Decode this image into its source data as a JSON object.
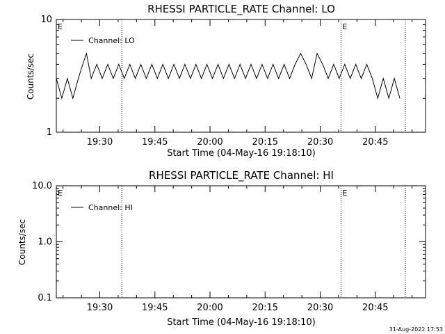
{
  "chart_data": [
    {
      "type": "line",
      "title": "RHESSI PARTICLE_RATE Channel: LO",
      "xlabel": "Start Time (04-May-16 19:18:10)",
      "ylabel": "Counts/sec",
      "y_scale": "log",
      "ylim": [
        1,
        10
      ],
      "ytick_labels": [
        "1",
        "10"
      ],
      "xlim": [
        "19:18:10",
        "20:58:40"
      ],
      "xtick_labels": [
        "19:30",
        "19:45",
        "20:00",
        "20:15",
        "20:30",
        "20:45"
      ],
      "grid": false,
      "legend_position": "top-left",
      "series": [
        {
          "name": "Channel: LO",
          "x_minutes_after_19_18_10": [
            0,
            1.5,
            3,
            4.5,
            6,
            7.2,
            8.2,
            9.5,
            11,
            12.5,
            14,
            15.5,
            17,
            18.5,
            20,
            21.5,
            23,
            24.5,
            26,
            27.5,
            29,
            30.5,
            32,
            33.5,
            35,
            36.5,
            38,
            39.5,
            41,
            42.5,
            44,
            45.5,
            47,
            48.5,
            50,
            51.5,
            53,
            54.5,
            56,
            57.5,
            59,
            60.5,
            62,
            63.5,
            65,
            66.5,
            68,
            69.5,
            71,
            72.5,
            74,
            75.5,
            77,
            78.5,
            80,
            81.5,
            83,
            84.5,
            86,
            87.5,
            89,
            90.5,
            92,
            93.5
          ],
          "y": [
            3,
            2,
            3,
            2,
            3,
            4,
            5,
            3,
            4,
            3,
            4,
            3,
            4,
            3,
            4,
            3,
            4,
            3,
            4,
            3,
            4,
            3,
            4,
            3,
            4,
            3,
            4,
            3,
            4,
            3,
            4,
            3,
            4,
            3,
            4,
            3,
            4,
            3,
            4,
            3,
            4,
            3,
            4,
            3,
            4,
            5,
            4,
            3,
            5,
            4,
            3,
            4,
            3,
            4,
            3,
            4,
            3,
            4,
            3,
            2,
            3,
            2,
            3,
            2
          ]
        }
      ],
      "annotations": [
        {
          "text": "E",
          "x": "19:18:10"
        },
        {
          "text": "E",
          "x": "20:35:40"
        }
      ],
      "vertical_dotted_lines_at": [
        "19:36:00",
        "20:35:40",
        "20:53:10"
      ]
    },
    {
      "type": "line",
      "title": "RHESSI PARTICLE_RATE Channel: HI",
      "xlabel": "Start Time (04-May-16 19:18:10)",
      "ylabel": "Counts/sec",
      "y_scale": "log",
      "ylim": [
        0.1,
        10.0
      ],
      "ytick_labels": [
        "0.1",
        "1.0",
        "10.0"
      ],
      "xlim": [
        "19:18:10",
        "20:58:40"
      ],
      "xtick_labels": [
        "19:30",
        "19:45",
        "20:00",
        "20:15",
        "20:30",
        "20:45"
      ],
      "grid": false,
      "legend_position": "top-left",
      "series": [
        {
          "name": "Channel: HI",
          "x_minutes_after_19_18_10": [],
          "y": []
        }
      ],
      "annotations": [
        {
          "text": "E",
          "x": "19:18:10"
        },
        {
          "text": "E",
          "x": "20:35:40"
        }
      ],
      "vertical_dotted_lines_at": [
        "19:36:00",
        "20:35:40",
        "20:53:10"
      ]
    }
  ],
  "footer": {
    "timestamp": "31-Aug-2022 17:53"
  }
}
